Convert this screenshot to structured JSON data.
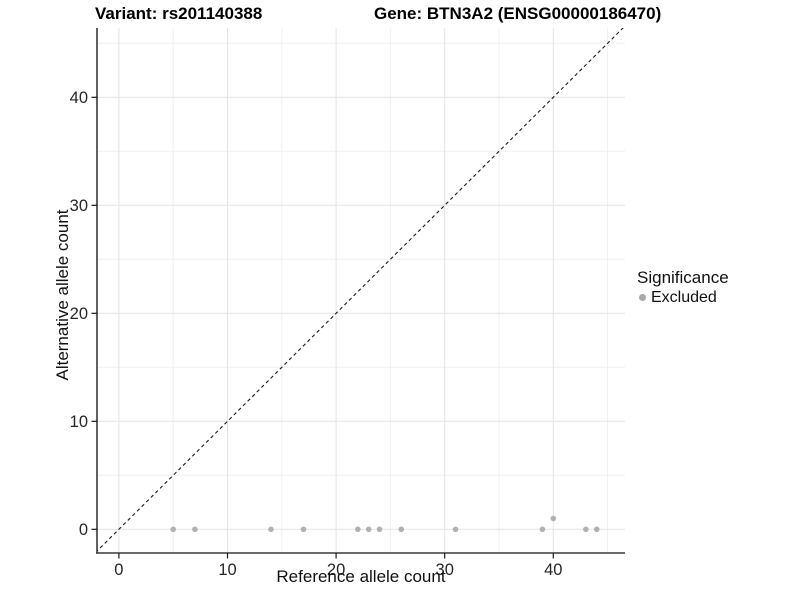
{
  "header": {
    "variant_title": "Variant: rs201140388",
    "gene_title": "Gene: BTN3A2 (ENSG00000186470)"
  },
  "legend": {
    "title": "Significance",
    "items": [
      {
        "label": "Excluded",
        "color": "#a9a9a9"
      }
    ]
  },
  "chart_data": {
    "type": "scatter",
    "title": "Variant: rs201140388 — Gene: BTN3A2 (ENSG00000186470)",
    "xlabel": "Reference allele count",
    "ylabel": "Alternative allele count",
    "xlim": [
      -2.0,
      46.6
    ],
    "ylim": [
      -2.2,
      46.4
    ],
    "x_ticks": [
      0,
      10,
      20,
      30,
      40
    ],
    "y_ticks": [
      0,
      10,
      20,
      30,
      40
    ],
    "x_minor_gridlines": [
      5,
      15,
      25,
      35,
      45
    ],
    "y_minor_gridlines": [
      5,
      15,
      25,
      35,
      45
    ],
    "grid": "major and minor, light gray, white background",
    "legend_position": "right",
    "identity_line": {
      "equation": "y = x",
      "style": "dashed",
      "color": "#1a1a1a"
    },
    "series": [
      {
        "name": "Excluded",
        "color": "#a9a9a9",
        "points": [
          [
            5,
            0
          ],
          [
            7,
            0
          ],
          [
            14,
            0
          ],
          [
            17,
            0
          ],
          [
            22,
            0
          ],
          [
            23,
            0
          ],
          [
            24,
            0
          ],
          [
            26,
            0
          ],
          [
            31,
            0
          ],
          [
            39,
            0
          ],
          [
            40,
            1
          ],
          [
            43,
            0
          ],
          [
            44,
            0
          ]
        ]
      }
    ]
  },
  "colors": {
    "point": "#a9a9a9",
    "grid_major": "#e3e3e3",
    "grid_minor": "#f0f0f0",
    "axis_line": "#3a3a3a",
    "tick_text": "#262626",
    "background": "#ffffff"
  }
}
